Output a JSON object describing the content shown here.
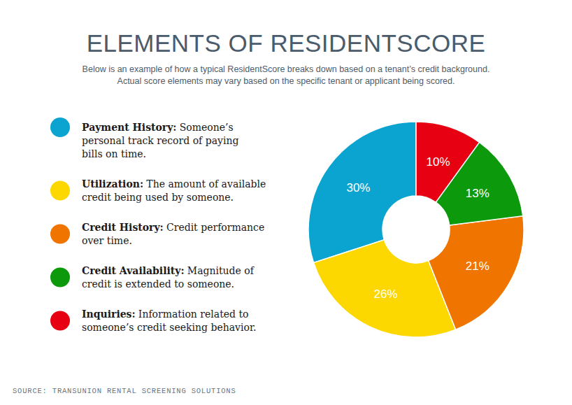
{
  "chart_data": {
    "type": "pie",
    "title": "ELEMENTS OF RESIDENTSCORE",
    "subtitle": [
      "Below is an example of how a typical ResidentScore breaks down based on a tenant’s credit background.",
      "Actual score elements may vary based on the specific tenant or applicant being scored."
    ],
    "categories": [
      "Payment History:",
      "Utilization:",
      "Credit History:",
      "Credit Availability:",
      "Inquiries:"
    ],
    "descriptions": [
      [
        "Someone’s",
        "personal track record of paying",
        "bills on time."
      ],
      [
        "The amount of available",
        "credit being used by someone."
      ],
      [
        "Credit performance",
        "over time."
      ],
      [
        "Magnitude of",
        "credit is extended to someone."
      ],
      [
        "Information related to",
        "someone’s credit seeking behavior."
      ]
    ],
    "values": [
      30,
      26,
      21,
      13,
      10
    ],
    "value_labels": [
      "30%",
      "26%",
      "21%",
      "13%",
      "10%"
    ],
    "colors": [
      "#0ba4d0",
      "#fdd700",
      "#f07400",
      "#0c990c",
      "#e60012"
    ],
    "data_labels": true,
    "legend": "left",
    "source": "SOURCE: TRANSUNION RENTAL SCREENING SOLUTIONS"
  }
}
